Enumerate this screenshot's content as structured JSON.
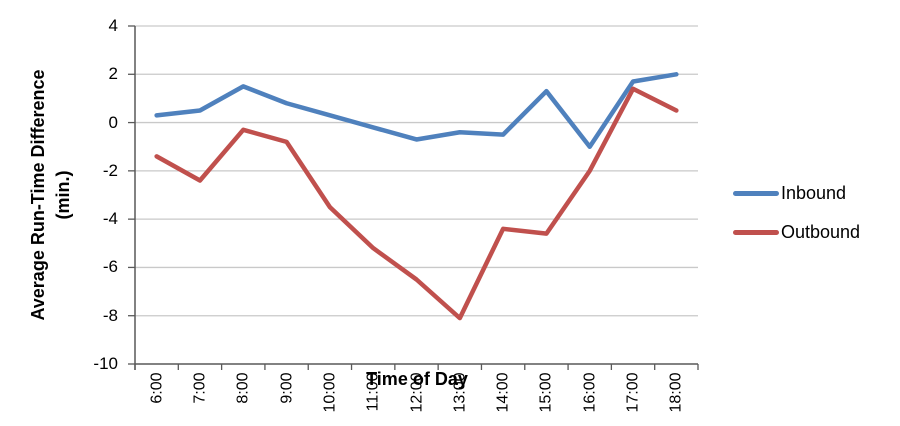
{
  "chart_data": {
    "type": "line",
    "title": "",
    "xlabel": "Time of Day",
    "ylabel": "Average Run-Time Difference (min.)",
    "categories": [
      "6:00",
      "7:00",
      "8:00",
      "9:00",
      "10:00",
      "11:00",
      "12:00",
      "13:00",
      "14:00",
      "15:00",
      "16:00",
      "17:00",
      "18:00"
    ],
    "series": [
      {
        "name": "Inbound",
        "color": "#4F81BD",
        "values": [
          0.3,
          0.5,
          1.5,
          0.8,
          0.3,
          -0.2,
          -0.7,
          -0.4,
          -0.5,
          1.3,
          -1.0,
          1.7,
          2.0
        ]
      },
      {
        "name": "Outbound",
        "color": "#C0504D",
        "values": [
          -1.4,
          -2.4,
          -0.3,
          -0.8,
          -3.5,
          -5.2,
          -6.5,
          -8.1,
          -4.4,
          -4.6,
          -2.0,
          1.4,
          0.5
        ]
      }
    ],
    "yticks": [
      4,
      2,
      0,
      -2,
      -4,
      -6,
      -8,
      -10
    ],
    "ylim": [
      -10,
      4
    ],
    "grid": true,
    "legend_position": "right",
    "colors": {
      "gridline": "#C9C9C9",
      "axis": "#595959",
      "text": "#000000",
      "background": "#FFFFFF"
    }
  }
}
